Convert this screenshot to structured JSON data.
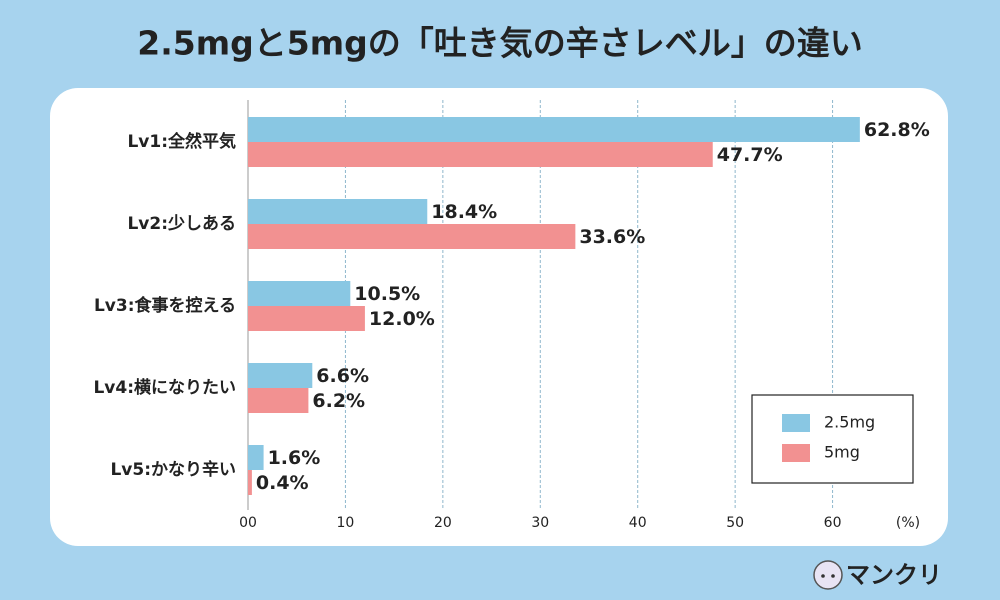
{
  "chart_data": {
    "type": "barh",
    "title": "2.5mgと5mgの「吐き気の辛さレベル」の違い",
    "categories": [
      "Lv1:全然平気",
      "Lv2:少しある",
      "Lv3:食事を控える",
      "Lv4:横になりたい",
      "Lv5:かなり辛い"
    ],
    "series": [
      {
        "name": "2.5mg",
        "color": "#89c7e3",
        "values": [
          62.8,
          18.4,
          10.5,
          6.6,
          1.6
        ],
        "value_labels": [
          "62.8%",
          "18.4%",
          "10.5%",
          "6.6%",
          "1.6%"
        ]
      },
      {
        "name": "5mg",
        "color": "#f29191",
        "values": [
          47.7,
          33.6,
          12.0,
          6.2,
          0.4
        ],
        "value_labels": [
          "47.7%",
          "33.6%",
          "12.0%",
          "6.2%",
          "0.4%"
        ]
      }
    ],
    "xlim": [
      0,
      70
    ],
    "xticks": [
      {
        "value": 0,
        "label": "00"
      },
      10,
      20,
      30,
      40,
      50,
      60
    ],
    "x_label": "(%)",
    "grid": true,
    "legend": "lower right"
  },
  "logo": "マンクリ"
}
